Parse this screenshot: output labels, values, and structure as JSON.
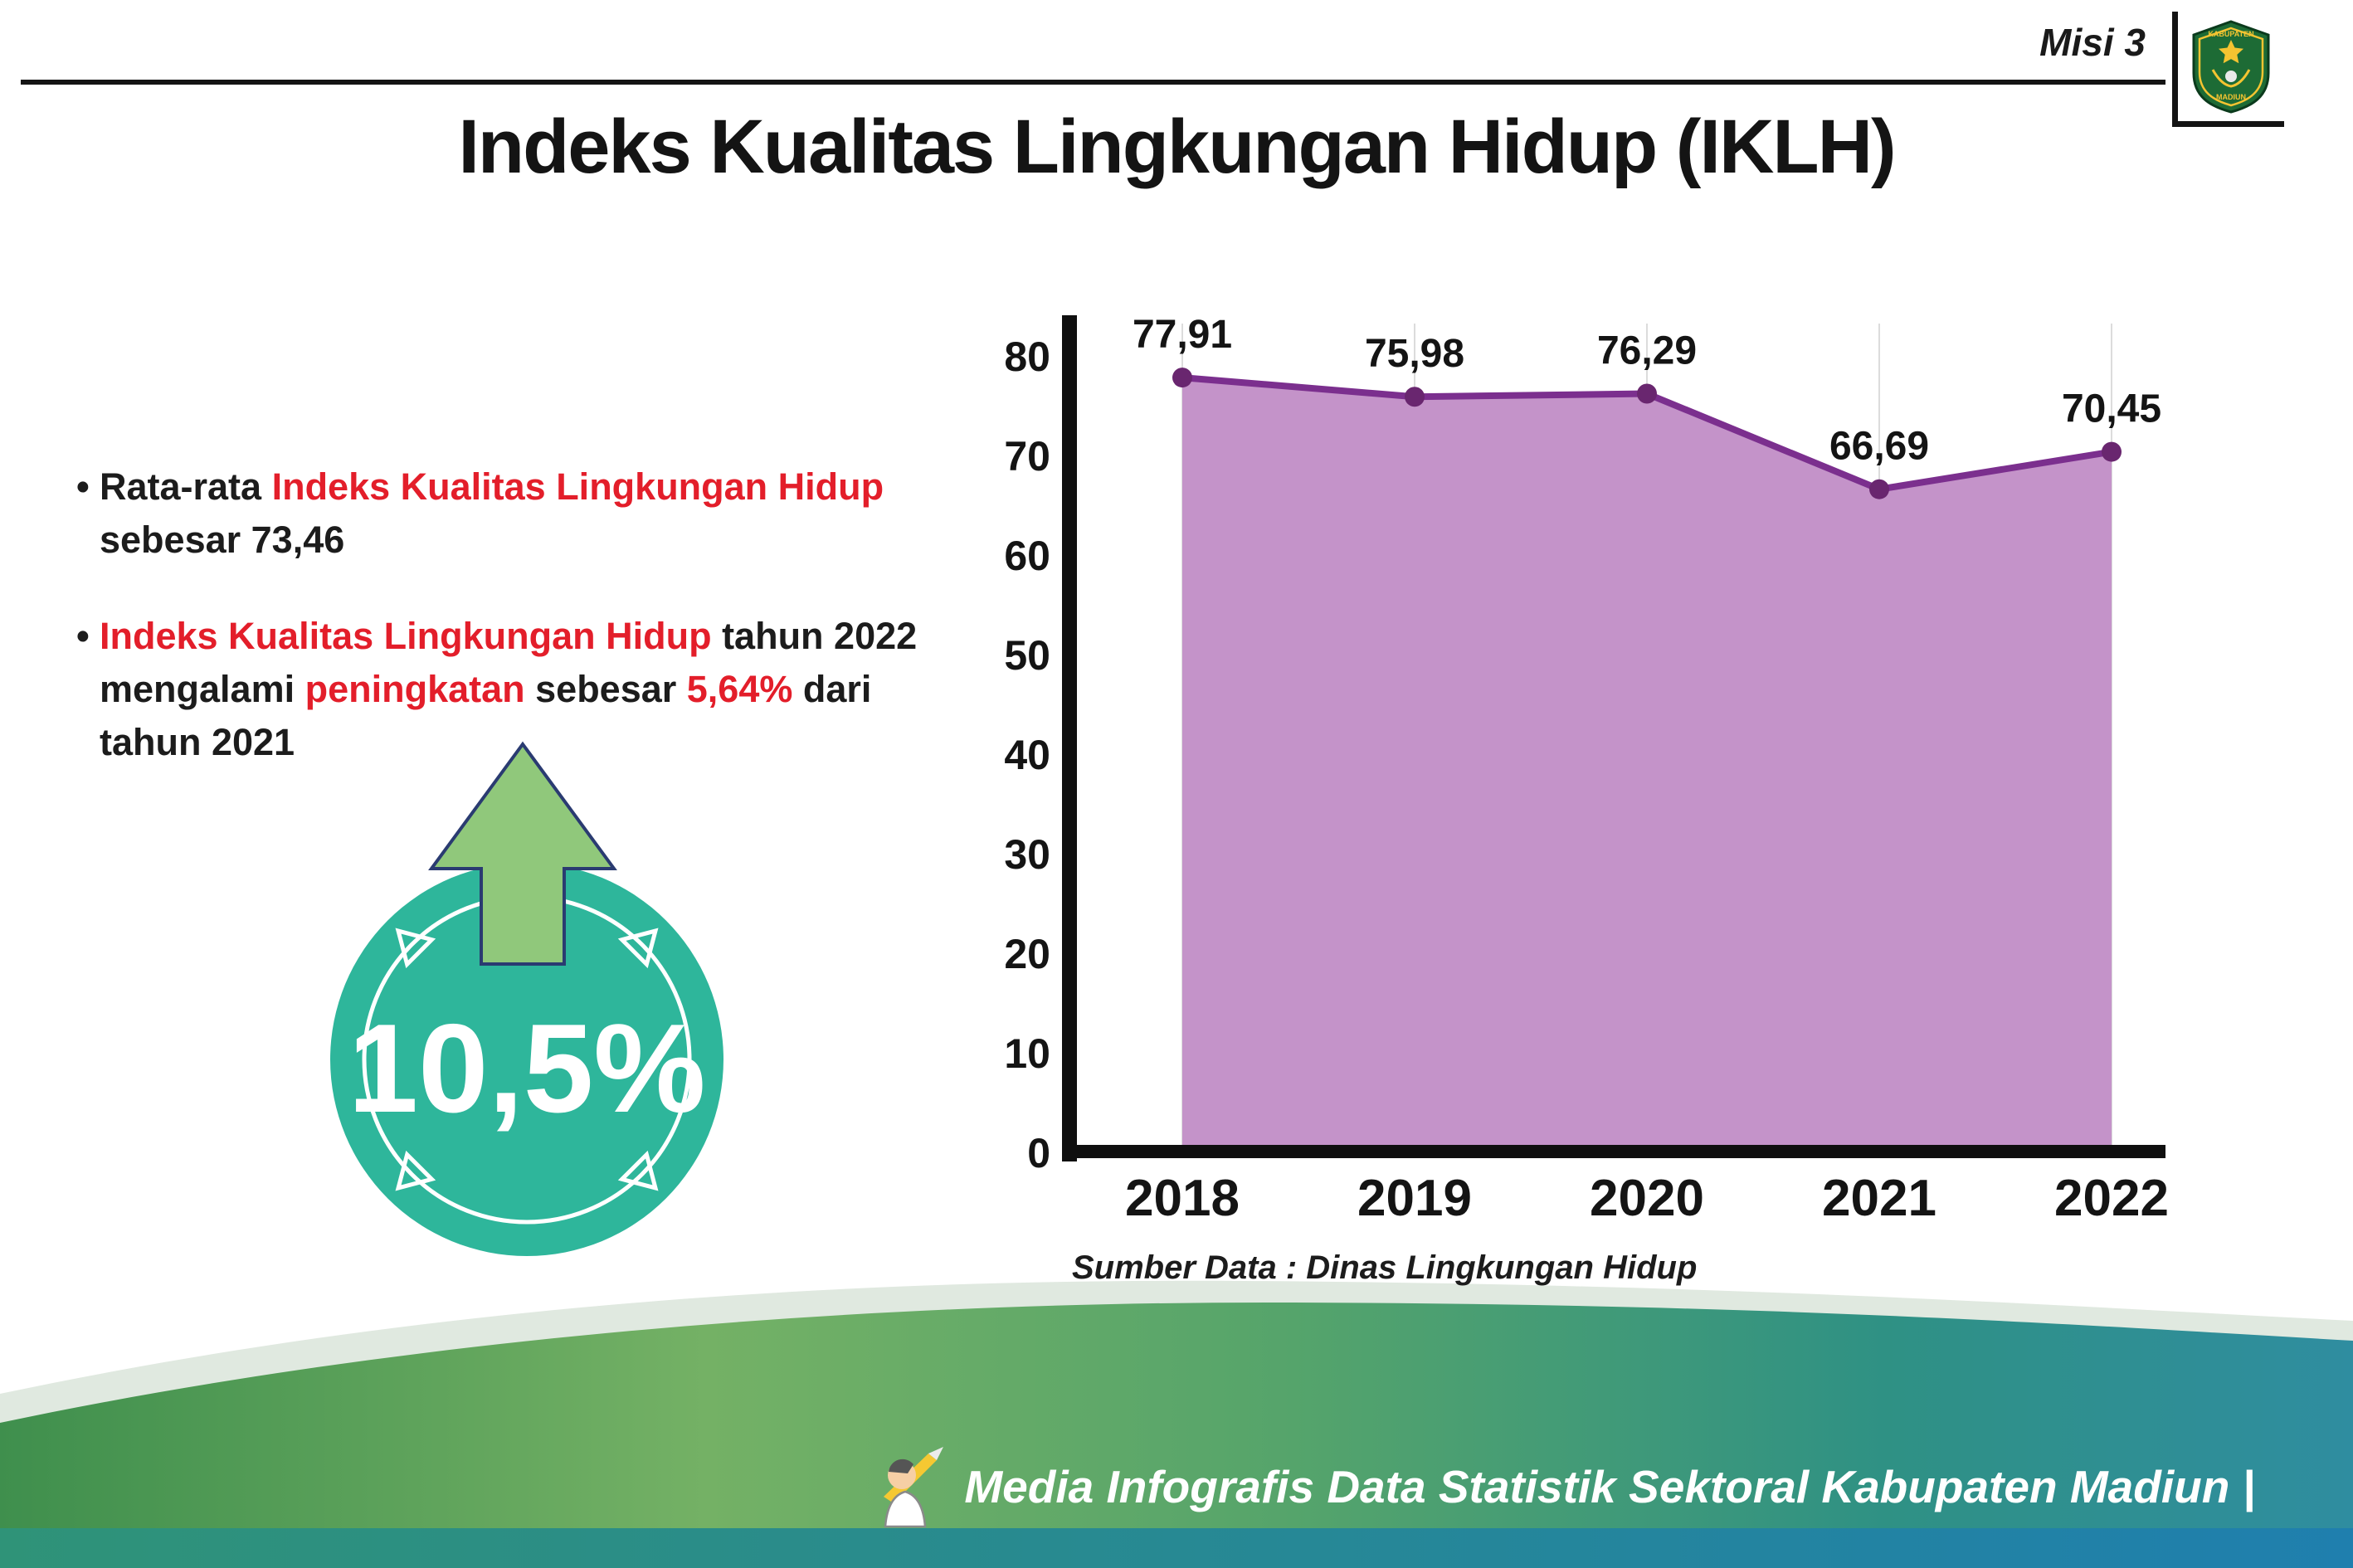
{
  "header": {
    "misi": "Misi 3",
    "title": "Indeks Kualitas Lingkungan Hidup (IKLH)",
    "logo": {
      "top_text": "KABUPATEN",
      "bottom_text": "MADIUN"
    }
  },
  "bullets": {
    "marker": "•",
    "item1": {
      "parts": [
        {
          "text": "Rata-rata "
        },
        {
          "text": "Indeks Kualitas Lingkungan Hidup"
        },
        {
          "text": " sebesar 73,46"
        }
      ]
    },
    "item2": {
      "parts": [
        {
          "text": "Indeks Kualitas Lingkungan Hidup"
        },
        {
          "text": " tahun 2022 mengalami "
        },
        {
          "text": "peningkatan"
        },
        {
          "text": " sebesar "
        },
        {
          "text": "5,64%"
        },
        {
          "text": " dari tahun 2021"
        }
      ]
    }
  },
  "badge": {
    "value": "10,5%"
  },
  "chart_data": {
    "type": "area",
    "categories": [
      "2018",
      "2019",
      "2020",
      "2021",
      "2022"
    ],
    "values": [
      77.91,
      75.98,
      76.29,
      66.69,
      70.45
    ],
    "labels": [
      "77,91",
      "75,98",
      "76,29",
      "66,69",
      "70,45"
    ],
    "title": "",
    "xlabel": "",
    "ylabel": "",
    "ylim": [
      0,
      80
    ],
    "yticks": [
      0,
      10,
      20,
      30,
      40,
      50,
      60,
      70,
      80
    ],
    "grid": "vertical",
    "legend": "none",
    "colors": {
      "area": "#c493c9",
      "line": "#7b2f8e",
      "marker": "#69266f"
    }
  },
  "source": "Sumber Data : Dinas Lingkungan Hidup",
  "footer": {
    "text": "Media Infografis Data Statistik Sektoral Kabupaten Madiun |"
  }
}
